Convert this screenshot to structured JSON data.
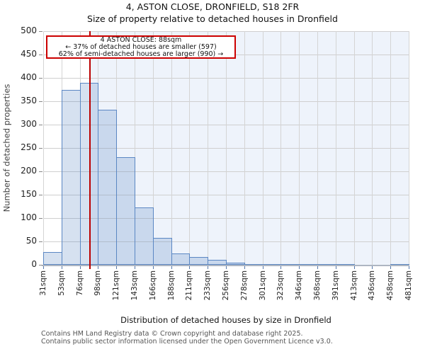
{
  "annotation": {
    "line1": "4 ASTON CLOSE: 88sqm",
    "line2": "← 37% of detached houses are smaller (597)",
    "line3": "62% of semi-detached houses are larger (990) →"
  },
  "footer": {
    "line1": "Contains HM Land Registry data © Crown copyright and database right 2025.",
    "line2": "Contains public sector information licensed under the Open Government Licence v3.0."
  },
  "chart_data": {
    "type": "bar",
    "title": "4, ASTON CLOSE, DRONFIELD, S18 2FR",
    "subtitle": "Size of property relative to detached houses in Dronfield",
    "xlabel": "Distribution of detached houses by size in Dronfield",
    "ylabel": "Number of detached properties",
    "xtick_labels": [
      "31sqm",
      "53sqm",
      "76sqm",
      "98sqm",
      "121sqm",
      "143sqm",
      "166sqm",
      "188sqm",
      "211sqm",
      "233sqm",
      "256sqm",
      "278sqm",
      "301sqm",
      "323sqm",
      "346sqm",
      "368sqm",
      "391sqm",
      "413sqm",
      "436sqm",
      "458sqm",
      "481sqm"
    ],
    "bin_edges_sqm": [
      31,
      53,
      76,
      98,
      121,
      143,
      166,
      188,
      211,
      233,
      256,
      278,
      301,
      323,
      346,
      368,
      391,
      413,
      436,
      458,
      481
    ],
    "values": [
      27,
      375,
      390,
      332,
      230,
      123,
      58,
      25,
      17,
      11,
      4,
      2,
      2,
      1,
      1,
      1,
      1,
      0,
      0,
      2
    ],
    "ylim": [
      0,
      500
    ],
    "ytick_step": 50,
    "grid": true,
    "legend": false,
    "marker": {
      "value_sqm": 88,
      "shaded_region": "right-of-marker"
    }
  },
  "colors": {
    "bar_fill": "rgba(91,135,197,0.25)",
    "bar_border": "#5b87c3",
    "marker_line": "#bb0000",
    "annotation_border": "#cc0000",
    "shaded_region": "#eef3fb",
    "gridline_h": "#cfcfcf",
    "gridline_v": "#d4d4d4",
    "axis_line": "#aeb6c2"
  }
}
